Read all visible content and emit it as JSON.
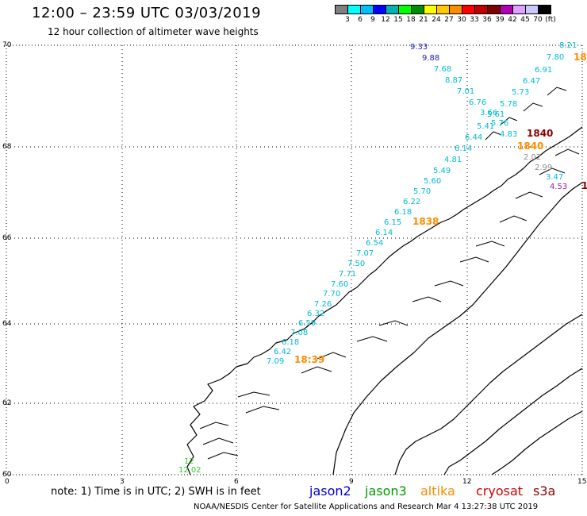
{
  "header": {
    "title": "12:00 – 23:59 UTC 03/03/2019",
    "subtitle": "12 hour collection of altimeter wave heights"
  },
  "legend": {
    "colors": [
      "#7f7f7f",
      "#00ffff",
      "#00bfff",
      "#0000ff",
      "#00b2b2",
      "#00ff00",
      "#008c00",
      "#ffff00",
      "#ffc800",
      "#ff8c00",
      "#ff0000",
      "#c00000",
      "#7f0000",
      "#b000b0",
      "#e0a0ff",
      "#c8c8ff",
      "#000000"
    ],
    "labels": [
      "3",
      "6",
      "9",
      "12",
      "15",
      "18",
      "21",
      "24",
      "27",
      "30",
      "33",
      "36",
      "39",
      "42",
      "45",
      "70",
      "(ft)"
    ]
  },
  "axes": {
    "lat_labels": [
      "70",
      "68",
      "66",
      "64",
      "62",
      "60"
    ],
    "lon_labels": [
      "0",
      "3",
      "6",
      "9",
      "12",
      "15"
    ]
  },
  "observations": [
    {
      "text": "8.21",
      "color": "#00bcd4"
    },
    {
      "text": "7.80",
      "color": "#00bcd4"
    },
    {
      "text": "18",
      "color": "#ff8c00"
    },
    {
      "text": "9.33",
      "color": "#1a1acd"
    },
    {
      "text": "9.88",
      "color": "#1a1acd"
    },
    {
      "text": "7.68",
      "color": "#00bcd4"
    },
    {
      "text": "8.87",
      "color": "#00bcd4"
    },
    {
      "text": "7.01",
      "color": "#00bcd4"
    },
    {
      "text": "6.76",
      "color": "#00bcd4"
    },
    {
      "text": "6.91",
      "color": "#00bcd4"
    },
    {
      "text": "6.47",
      "color": "#00bcd4"
    },
    {
      "text": "5.73",
      "color": "#00bcd4"
    },
    {
      "text": "5.78",
      "color": "#00bcd4"
    },
    {
      "text": "3.66",
      "color": "#00bcd4"
    },
    {
      "text": "5.61",
      "color": "#00bcd4"
    },
    {
      "text": "5.41",
      "color": "#00bcd4"
    },
    {
      "text": "5.76",
      "color": "#00bcd4"
    },
    {
      "text": "4.83",
      "color": "#00bcd4"
    },
    {
      "text": "6.44",
      "color": "#00bcd4"
    },
    {
      "text": "1840",
      "color": "#8b0000"
    },
    {
      "text": "1840",
      "color": "#ff8c00"
    },
    {
      "text": "6.14",
      "color": "#00bcd4"
    },
    {
      "text": "2.02",
      "color": "#8a8a8a"
    },
    {
      "text": "4.81",
      "color": "#00bcd4"
    },
    {
      "text": "2.99",
      "color": "#8a8a8a"
    },
    {
      "text": "5.49",
      "color": "#00bcd4"
    },
    {
      "text": "3.47",
      "color": "#00bcd4"
    },
    {
      "text": "4.53",
      "color": "#a020a0"
    },
    {
      "text": "1",
      "color": "#8b0000"
    },
    {
      "text": "5.60",
      "color": "#00bcd4"
    },
    {
      "text": "5.70",
      "color": "#00bcd4"
    },
    {
      "text": "6.22",
      "color": "#00bcd4"
    },
    {
      "text": "6.18",
      "color": "#00bcd4"
    },
    {
      "text": "6.15",
      "color": "#00bcd4"
    },
    {
      "text": "1838",
      "color": "#ff8c00"
    },
    {
      "text": "6.14",
      "color": "#00bcd4"
    },
    {
      "text": "6.54",
      "color": "#00bcd4"
    },
    {
      "text": "7.07",
      "color": "#00bcd4"
    },
    {
      "text": "7.50",
      "color": "#00bcd4"
    },
    {
      "text": "7.71",
      "color": "#00bcd4"
    },
    {
      "text": "7.60",
      "color": "#00bcd4"
    },
    {
      "text": "7.70",
      "color": "#00bcd4"
    },
    {
      "text": "7.26",
      "color": "#00bcd4"
    },
    {
      "text": "6.32",
      "color": "#00bcd4"
    },
    {
      "text": "6.59",
      "color": "#00bcd4"
    },
    {
      "text": "7.08",
      "color": "#00bcd4"
    },
    {
      "text": "6.18",
      "color": "#00bcd4"
    },
    {
      "text": "6.42",
      "color": "#00bcd4"
    },
    {
      "text": "7.09",
      "color": "#00bcd4"
    },
    {
      "text": "18:39",
      "color": "#ff8c00"
    },
    {
      "text": "12",
      "color": "#32cd32"
    },
    {
      "text": "12.02",
      "color": "#32cd32"
    }
  ],
  "footer": {
    "note": "note:  1) Time is in UTC;  2) SWH is in feet",
    "satellites": [
      {
        "name": "jason2",
        "color": "#0000cc"
      },
      {
        "name": "jason3",
        "color": "#009900"
      },
      {
        "name": "altika",
        "color": "#ff8c00"
      },
      {
        "name": "cryosat",
        "color": "#cc0000"
      },
      {
        "name": "s3a",
        "color": "#8b0000"
      }
    ],
    "credit": "NOAA/NESDIS Center for Satellite Applications and Research     Mar  4 13:27:38 UTC 2019"
  }
}
